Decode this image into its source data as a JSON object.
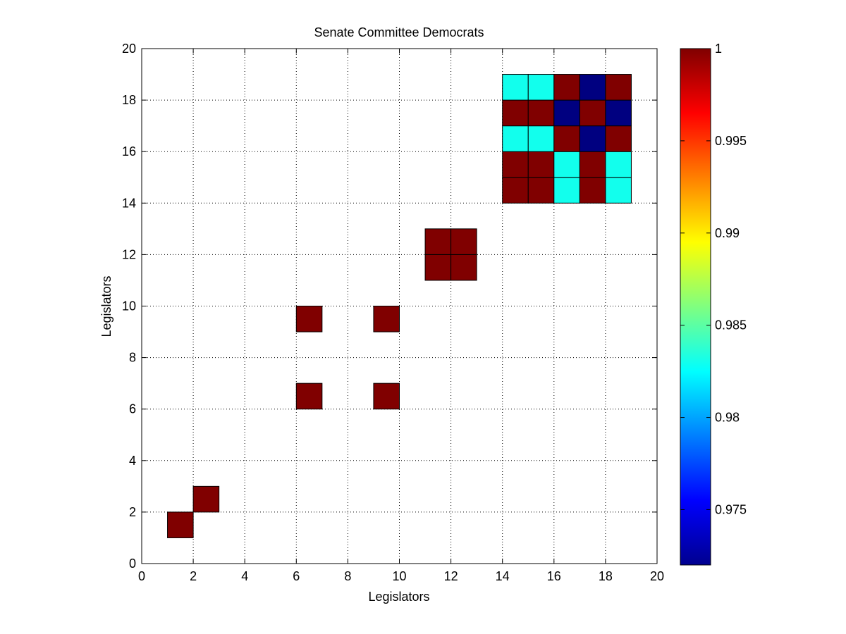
{
  "chart_data": {
    "type": "heatmap",
    "title": "Senate Committee Democrats",
    "xlabel": "Legislators",
    "ylabel": "Legislators",
    "xlim": [
      0,
      20
    ],
    "ylim": [
      0,
      20
    ],
    "xticks": [
      "0",
      "2",
      "4",
      "6",
      "8",
      "10",
      "12",
      "14",
      "16",
      "18",
      "20"
    ],
    "yticks": [
      "0",
      "2",
      "4",
      "6",
      "8",
      "10",
      "12",
      "14",
      "16",
      "18",
      "20"
    ],
    "grid": true,
    "colormap": "jet",
    "clim": [
      0.972,
      1.0
    ],
    "colorbar_ticks": [
      "0.975",
      "0.98",
      "0.985",
      "0.99",
      "0.995",
      "1"
    ],
    "colorbar_tick_values": [
      0.975,
      0.98,
      0.985,
      0.99,
      0.995,
      1.0
    ],
    "cells": [
      {
        "x": 1,
        "y": 1,
        "value": 1.0
      },
      {
        "x": 2,
        "y": 2,
        "value": 1.0
      },
      {
        "x": 6,
        "y": 6,
        "value": 1.0
      },
      {
        "x": 9,
        "y": 6,
        "value": 1.0
      },
      {
        "x": 6,
        "y": 9,
        "value": 1.0
      },
      {
        "x": 9,
        "y": 9,
        "value": 1.0
      },
      {
        "x": 11,
        "y": 11,
        "value": 1.0
      },
      {
        "x": 12,
        "y": 11,
        "value": 1.0
      },
      {
        "x": 11,
        "y": 12,
        "value": 1.0
      },
      {
        "x": 12,
        "y": 12,
        "value": 1.0
      },
      {
        "x": 14,
        "y": 14,
        "value": 1.0
      },
      {
        "x": 15,
        "y": 14,
        "value": 1.0
      },
      {
        "x": 16,
        "y": 14,
        "value": 0.983
      },
      {
        "x": 17,
        "y": 14,
        "value": 1.0
      },
      {
        "x": 18,
        "y": 14,
        "value": 0.983
      },
      {
        "x": 14,
        "y": 15,
        "value": 1.0
      },
      {
        "x": 15,
        "y": 15,
        "value": 1.0
      },
      {
        "x": 16,
        "y": 15,
        "value": 0.983
      },
      {
        "x": 17,
        "y": 15,
        "value": 1.0
      },
      {
        "x": 18,
        "y": 15,
        "value": 0.983
      },
      {
        "x": 14,
        "y": 16,
        "value": 0.983
      },
      {
        "x": 15,
        "y": 16,
        "value": 0.983
      },
      {
        "x": 16,
        "y": 16,
        "value": 1.0
      },
      {
        "x": 17,
        "y": 16,
        "value": 0.972
      },
      {
        "x": 18,
        "y": 16,
        "value": 1.0
      },
      {
        "x": 14,
        "y": 17,
        "value": 1.0
      },
      {
        "x": 15,
        "y": 17,
        "value": 1.0
      },
      {
        "x": 16,
        "y": 17,
        "value": 0.972
      },
      {
        "x": 17,
        "y": 17,
        "value": 1.0
      },
      {
        "x": 18,
        "y": 17,
        "value": 0.972
      },
      {
        "x": 14,
        "y": 18,
        "value": 0.983
      },
      {
        "x": 15,
        "y": 18,
        "value": 0.983
      },
      {
        "x": 16,
        "y": 18,
        "value": 1.0
      },
      {
        "x": 17,
        "y": 18,
        "value": 0.972
      },
      {
        "x": 18,
        "y": 18,
        "value": 1.0
      }
    ]
  }
}
